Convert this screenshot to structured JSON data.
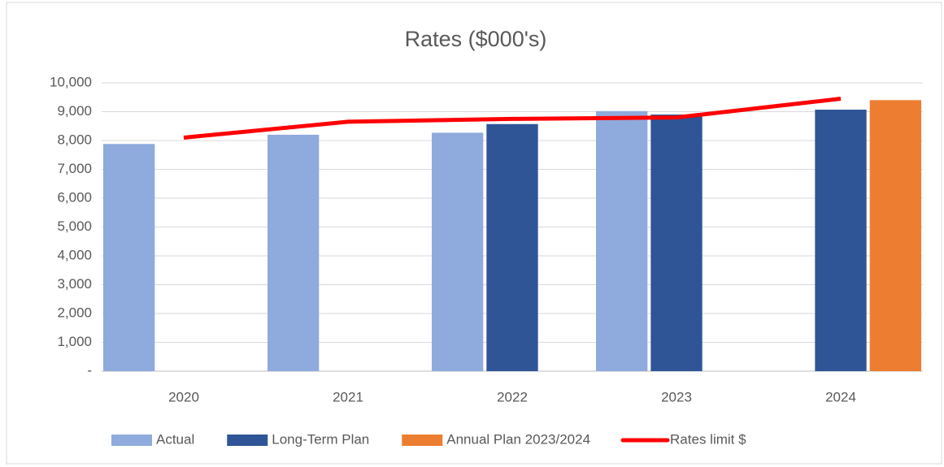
{
  "chart_data": {
    "type": "bar",
    "title": "Rates ($000's)",
    "categories": [
      "2020",
      "2021",
      "2022",
      "2023",
      "2024"
    ],
    "series": [
      {
        "name": "Actual",
        "color": "#8faadc",
        "values": [
          7880,
          8200,
          8270,
          9020,
          null
        ]
      },
      {
        "name": "Long-Term Plan",
        "color": "#2f5597",
        "values": [
          null,
          null,
          8570,
          8900,
          9070
        ]
      },
      {
        "name": "Annual Plan 2023/2024",
        "color": "#ed7d31",
        "values": [
          null,
          null,
          null,
          null,
          9400
        ]
      },
      {
        "name": "Rates limit $",
        "color": "#ff0000",
        "type": "line",
        "values": [
          8100,
          8650,
          8750,
          8800,
          9450
        ]
      }
    ],
    "ylim": [
      0,
      10000
    ],
    "yticks": [
      {
        "value": 0,
        "label": "-"
      },
      {
        "value": 1000,
        "label": "1,000"
      },
      {
        "value": 2000,
        "label": "2,000"
      },
      {
        "value": 3000,
        "label": "3,000"
      },
      {
        "value": 4000,
        "label": "4,000"
      },
      {
        "value": 5000,
        "label": "5,000"
      },
      {
        "value": 6000,
        "label": "6,000"
      },
      {
        "value": 7000,
        "label": "7,000"
      },
      {
        "value": 8000,
        "label": "8,000"
      },
      {
        "value": 9000,
        "label": "9,000"
      },
      {
        "value": 10000,
        "label": "10,000"
      }
    ],
    "grid": true,
    "legend": "bottom"
  }
}
